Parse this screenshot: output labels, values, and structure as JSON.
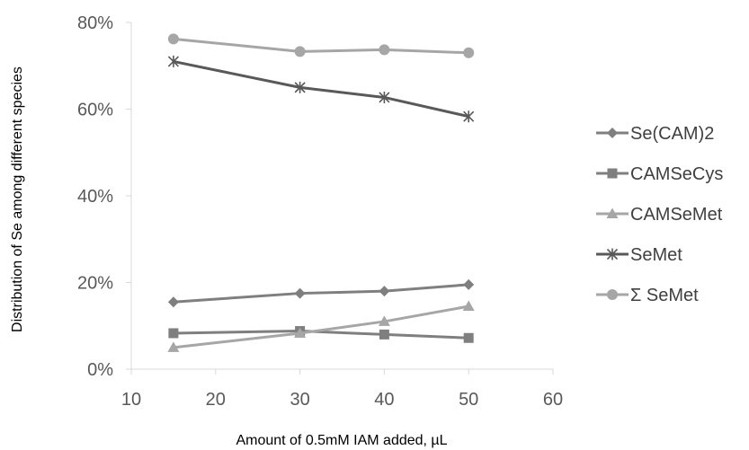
{
  "chart_data": {
    "type": "line",
    "title": "",
    "xlabel": "Amount of 0.5mM IAM added, µL",
    "ylabel": "Distribution of Se among different species",
    "xlim": [
      10,
      60
    ],
    "ylim": [
      0,
      0.8
    ],
    "x_ticks": [
      10,
      20,
      30,
      40,
      50,
      60
    ],
    "y_ticks": [
      {
        "value": 0,
        "label": "0%"
      },
      {
        "value": 0.2,
        "label": "20%"
      },
      {
        "value": 0.4,
        "label": "40%"
      },
      {
        "value": 0.6,
        "label": "60%"
      },
      {
        "value": 0.8,
        "label": "80%"
      }
    ],
    "grid": false,
    "legend_position": "right",
    "x": [
      15,
      30,
      40,
      50
    ],
    "series": [
      {
        "name": "Se(CAM)2",
        "marker": "diamond",
        "color": "#7f7f7f",
        "values": [
          0.155,
          0.175,
          0.18,
          0.195
        ]
      },
      {
        "name": "CAMSeCys",
        "marker": "square",
        "color": "#7f7f7f",
        "values": [
          0.083,
          0.088,
          0.08,
          0.072
        ]
      },
      {
        "name": "CAMSeMet",
        "marker": "triangle",
        "color": "#a6a6a6",
        "values": [
          0.05,
          0.083,
          0.11,
          0.145
        ]
      },
      {
        "name": "SeMet",
        "marker": "asterisk",
        "color": "#595959",
        "values": [
          0.71,
          0.65,
          0.627,
          0.583
        ]
      },
      {
        "name": "Σ SeMet",
        "marker": "circle",
        "color": "#a6a6a6",
        "values": [
          0.762,
          0.733,
          0.737,
          0.73
        ]
      }
    ]
  }
}
